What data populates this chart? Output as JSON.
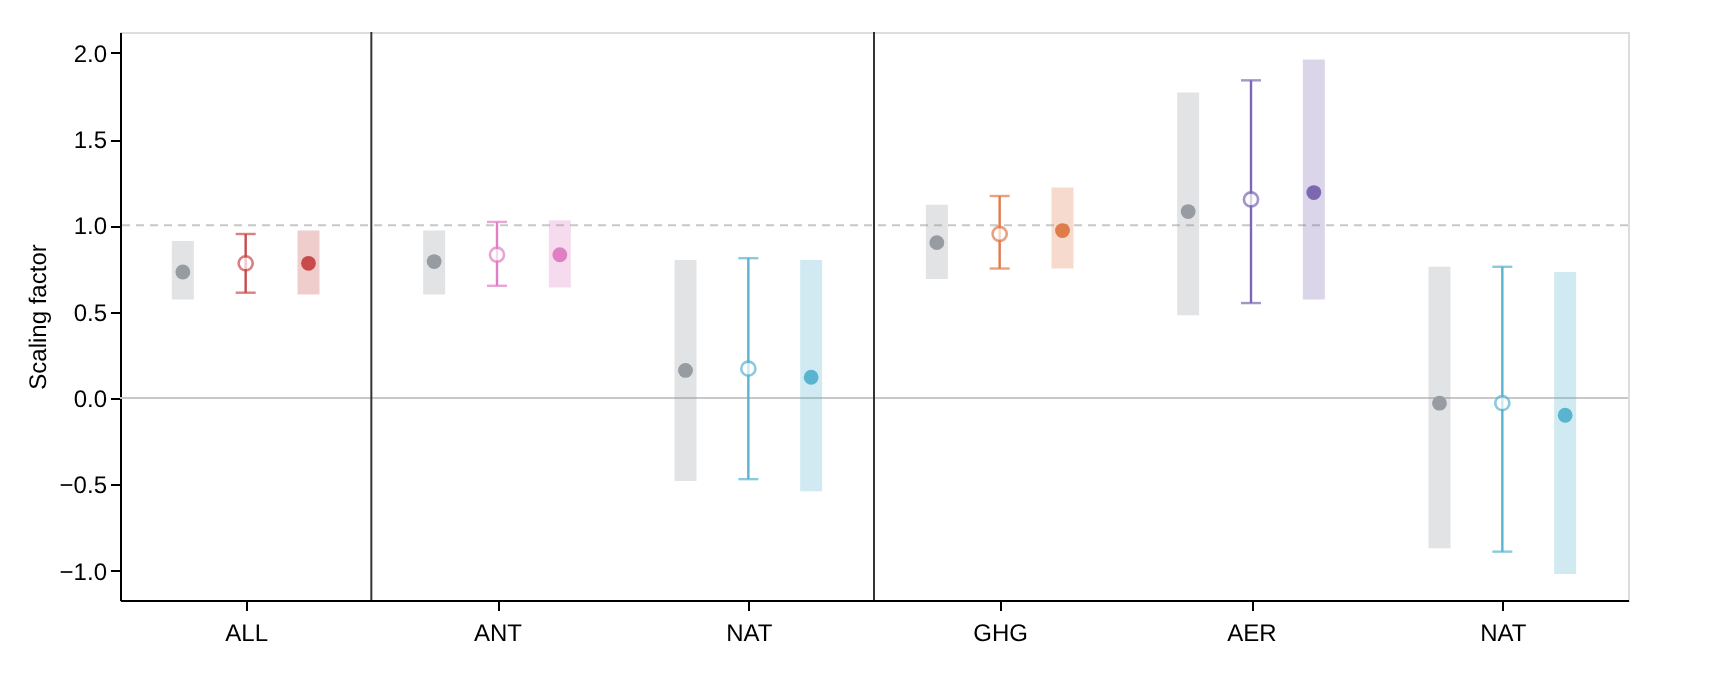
{
  "chart_data": {
    "type": "scatter",
    "ylabel": "Scaling factor",
    "categories": [
      "ALL",
      "ANT",
      "NAT",
      "GHG",
      "AER",
      "NAT"
    ],
    "ylim": [
      -1.17,
      2.12
    ],
    "yticks": [
      {
        "value": -1.0,
        "label": "−1.0"
      },
      {
        "value": -0.5,
        "label": "−0.5"
      },
      {
        "value": 0.0,
        "label": "0.0"
      },
      {
        "value": 0.5,
        "label": "0.5"
      },
      {
        "value": 1.0,
        "label": "1.0"
      },
      {
        "value": 1.5,
        "label": "1.5"
      },
      {
        "value": 2.0,
        "label": "2.0"
      }
    ],
    "grid": false,
    "marker": "circle",
    "ref_lines": [
      {
        "axis": "y",
        "value": 1.0,
        "color": "#c8c8c8",
        "line_style": "dashed"
      },
      {
        "axis": "y",
        "value": 0.0,
        "color": "#c8c8c8",
        "line_style": "solid"
      }
    ],
    "series": [
      {
        "color": "#979ca2",
        "values": [
          0.73,
          0.79,
          0.16,
          0.9,
          1.08,
          -0.03
        ],
        "errors": [
          [
            0.57,
            0.91
          ],
          [
            0.6,
            0.97
          ],
          [
            -0.48,
            0.8
          ],
          [
            0.69,
            1.12
          ],
          [
            0.48,
            1.77
          ],
          [
            -0.87,
            0.76
          ]
        ]
      },
      {
        "colors": [
          "#c94a4a",
          "#e07fc4",
          "#5ab4d0",
          "#e07b4a",
          "#7b68b0",
          "#5ab4d0"
        ],
        "values": [
          0.78,
          0.83,
          0.17,
          0.95,
          1.15,
          -0.03
        ],
        "errors": [
          [
            0.61,
            0.95
          ],
          [
            0.65,
            1.02
          ],
          [
            -0.47,
            0.81
          ],
          [
            0.75,
            1.17
          ],
          [
            0.55,
            1.84
          ],
          [
            -0.89,
            0.76
          ]
        ]
      },
      {
        "colors": [
          "#c94a4a",
          "#e07fc4",
          "#5ab4d0",
          "#e07b4a",
          "#7b68b0",
          "#5ab4d0"
        ],
        "values": [
          0.78,
          0.83,
          0.12,
          0.97,
          1.19,
          -0.1
        ],
        "errors": [
          [
            0.6,
            0.97
          ],
          [
            0.64,
            1.03
          ],
          [
            -0.54,
            0.8
          ],
          [
            0.75,
            1.22
          ],
          [
            0.57,
            1.96
          ],
          [
            -1.02,
            0.73
          ]
        ]
      }
    ]
  }
}
